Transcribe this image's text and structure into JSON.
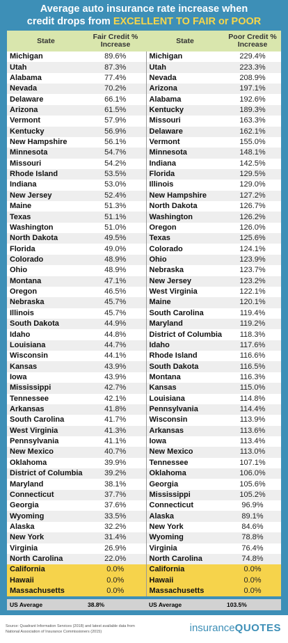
{
  "title": {
    "line1": "Average auto insurance rate increase when",
    "line2": "credit drops from",
    "highlight": "EXCELLENT TO FAIR or POOR"
  },
  "table": {
    "header": [
      "State",
      "Fair Credit % Increase",
      "State",
      "Poor Credit % Increase"
    ],
    "rows": [
      [
        "Michigan",
        "89.6%",
        "Michigan",
        "229.4%"
      ],
      [
        "Utah",
        "87.3%",
        "Utah",
        "223.3%"
      ],
      [
        "Alabama",
        "77.4%",
        "Nevada",
        "208.9%"
      ],
      [
        "Nevada",
        "70.2%",
        "Arizona",
        "197.1%"
      ],
      [
        "Delaware",
        "66.1%",
        "Alabama",
        "192.6%"
      ],
      [
        "Arizona",
        "61.5%",
        "Kentucky",
        "189.3%"
      ],
      [
        "Vermont",
        "57.9%",
        "Missouri",
        "163.3%"
      ],
      [
        "Kentucky",
        "56.9%",
        "Delaware",
        "162.1%"
      ],
      [
        "New Hampshire",
        "56.1%",
        "Vermont",
        "155.0%"
      ],
      [
        "Minnesota",
        "54.7%",
        "Minnesota",
        "148.1%"
      ],
      [
        "Missouri",
        "54.2%",
        "Indiana",
        "142.5%"
      ],
      [
        "Rhode Island",
        "53.5%",
        "Florida",
        "129.5%"
      ],
      [
        "Indiana",
        "53.0%",
        "Illinois",
        "129.0%"
      ],
      [
        "New Jersey",
        "52.4%",
        "New Hampshire",
        "127.2%"
      ],
      [
        "Maine",
        "51.3%",
        "North Dakota",
        "126.7%"
      ],
      [
        "Texas",
        "51.1%",
        "Washington",
        "126.2%"
      ],
      [
        "Washington",
        "51.0%",
        "Oregon",
        "126.0%"
      ],
      [
        "North Dakota",
        "49.5%",
        "Texas",
        "125.6%"
      ],
      [
        "Florida",
        "49.0%",
        "Colorado",
        "124.1%"
      ],
      [
        "Colorado",
        "48.9%",
        "Ohio",
        "123.9%"
      ],
      [
        "Ohio",
        "48.9%",
        "Nebraska",
        "123.7%"
      ],
      [
        "Montana",
        "47.1%",
        "New Jersey",
        "123.2%"
      ],
      [
        "Oregon",
        "46.5%",
        "West Virginia",
        "122.1%"
      ],
      [
        "Nebraska",
        "45.7%",
        "Maine",
        "120.1%"
      ],
      [
        "Illinois",
        "45.7%",
        "South Carolina",
        "119.4%"
      ],
      [
        "South Dakota",
        "44.9%",
        "Maryland",
        "119.2%"
      ],
      [
        "Idaho",
        "44.8%",
        "District of Columbia",
        "118.3%"
      ],
      [
        "Louisiana",
        "44.7%",
        "Idaho",
        "117.6%"
      ],
      [
        "Wisconsin",
        "44.1%",
        "Rhode Island",
        "116.6%"
      ],
      [
        "Kansas",
        "43.9%",
        "South Dakota",
        "116.5%"
      ],
      [
        "Iowa",
        "43.9%",
        "Montana",
        "116.3%"
      ],
      [
        "Mississippi",
        "42.7%",
        "Kansas",
        "115.0%"
      ],
      [
        "Tennessee",
        "42.1%",
        "Louisiana",
        "114.8%"
      ],
      [
        "Arkansas",
        "41.8%",
        "Pennsylvania",
        "114.4%"
      ],
      [
        "South Carolina",
        "41.7%",
        "Wisconsin",
        "113.9%"
      ],
      [
        "West Virginia",
        "41.3%",
        "Arkansas",
        "113.6%"
      ],
      [
        "Pennsylvania",
        "41.1%",
        "Iowa",
        "113.4%"
      ],
      [
        "New Mexico",
        "40.7%",
        "New Mexico",
        "113.0%"
      ],
      [
        "Oklahoma",
        "39.9%",
        "Tennessee",
        "107.1%"
      ],
      [
        "District of Columbia",
        "39.2%",
        "Oklahoma",
        "106.0%"
      ],
      [
        "Maryland",
        "38.1%",
        "Georgia",
        "105.6%"
      ],
      [
        "Connecticut",
        "37.7%",
        "Mississippi",
        "105.2%"
      ],
      [
        "Georgia",
        "37.6%",
        "Connecticut",
        "96.9%"
      ],
      [
        "Wyoming",
        "33.5%",
        "Alaska",
        "89.1%"
      ],
      [
        "Alaska",
        "32.2%",
        "New York",
        "84.6%"
      ],
      [
        "New York",
        "31.4%",
        "Wyoming",
        "78.8%"
      ],
      [
        "Virginia",
        "26.9%",
        "Virginia",
        "76.4%"
      ],
      [
        "North Carolina",
        "22.0%",
        "North Carolina",
        "74.8%"
      ],
      [
        "California",
        "0.0%",
        "California",
        "0.0%"
      ],
      [
        "Hawaii",
        "0.0%",
        "Hawaii",
        "0.0%"
      ],
      [
        "Massachusetts",
        "0.0%",
        "Massachusetts",
        "0.0%"
      ]
    ],
    "us_average": [
      "US Average",
      "38.8%",
      "US Average",
      "103.5%"
    ]
  },
  "footer": {
    "source": "Source: Quadrant Information Services (2018) and latest available data from National Association of Insurance Commissioners (2015)",
    "logo_a": "insurance",
    "logo_b": "QUOTES"
  }
}
